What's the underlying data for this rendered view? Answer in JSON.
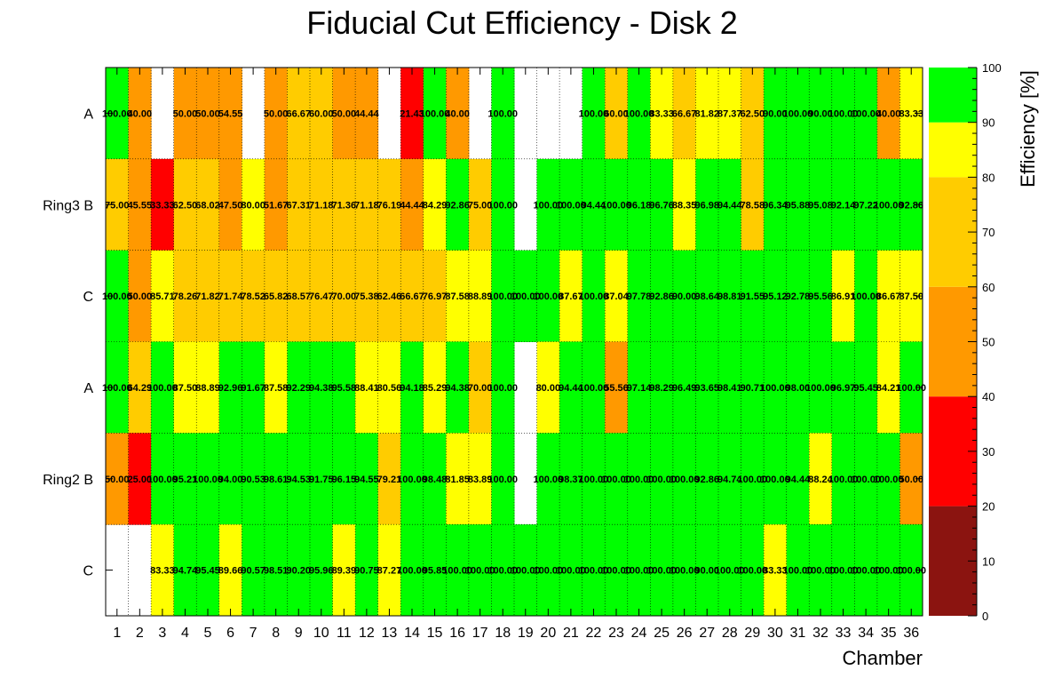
{
  "chart_data": {
    "type": "heatmap",
    "title": "Fiducial Cut Efficiency - Disk 2",
    "xlabel": "Chamber",
    "zlabel": "Efficiency [%]",
    "x": [
      1,
      2,
      3,
      4,
      5,
      6,
      7,
      8,
      9,
      10,
      11,
      12,
      13,
      14,
      15,
      16,
      17,
      18,
      19,
      20,
      21,
      22,
      23,
      24,
      25,
      26,
      27,
      28,
      29,
      30,
      31,
      32,
      33,
      34,
      35,
      36
    ],
    "y_labels": [
      "A",
      "Ring3 B",
      "C",
      "A",
      "Ring2 B",
      "C"
    ],
    "z_range": [
      0,
      100
    ],
    "z_ticks": [
      0,
      10,
      20,
      30,
      40,
      50,
      60,
      70,
      80,
      90,
      100
    ],
    "palette": [
      {
        "from": 0,
        "to": 20,
        "color": "#8b1410"
      },
      {
        "from": 20,
        "to": 40,
        "color": "#ff0000"
      },
      {
        "from": 40,
        "to": 60,
        "color": "#ff9900"
      },
      {
        "from": 60,
        "to": 80,
        "color": "#ffcc00"
      },
      {
        "from": 80,
        "to": 90,
        "color": "#ffff00"
      },
      {
        "from": 90,
        "to": 100.01,
        "color": "#00ff00"
      }
    ],
    "grid": true,
    "rows": [
      [
        100.0,
        40.0,
        null,
        50.0,
        50.0,
        54.55,
        null,
        50.0,
        66.67,
        60.0,
        50.0,
        44.44,
        null,
        21.43,
        100.0,
        40.0,
        null,
        100.0,
        null,
        null,
        null,
        100.0,
        60.0,
        100.0,
        83.33,
        66.67,
        81.82,
        87.37,
        62.5,
        90.0,
        100.0,
        90.0,
        100.0,
        100.0,
        40.0,
        83.33
      ],
      [
        75.0,
        45.55,
        33.33,
        62.5,
        68.02,
        47.5,
        80.0,
        51.67,
        67.31,
        71.18,
        71.36,
        71.18,
        76.19,
        44.44,
        84.29,
        92.86,
        75.0,
        100.0,
        null,
        100.0,
        100.0,
        94.44,
        100.0,
        96.18,
        96.76,
        88.35,
        96.98,
        94.44,
        78.58,
        96.34,
        95.88,
        95.08,
        92.14,
        97.22,
        100.0,
        92.86
      ],
      [
        100.0,
        50.0,
        85.71,
        78.26,
        71.82,
        71.74,
        78.52,
        65.82,
        68.57,
        76.47,
        70.0,
        75.38,
        62.46,
        66.67,
        76.97,
        87.58,
        88.89,
        100.0,
        100.0,
        100.0,
        87.67,
        100.0,
        87.04,
        97.78,
        92.86,
        90.0,
        98.64,
        98.81,
        91.55,
        95.12,
        92.78,
        95.56,
        86.91,
        100.0,
        86.67,
        87.5
      ],
      [
        100.0,
        64.29,
        100.0,
        87.5,
        88.89,
        92.96,
        91.67,
        87.58,
        92.29,
        94.38,
        95.58,
        88.41,
        80.56,
        94.18,
        85.29,
        94.38,
        70.0,
        100.0,
        null,
        80.0,
        94.44,
        100.0,
        55.56,
        97.14,
        98.29,
        96.49,
        93.65,
        98.41,
        90.71,
        100.0,
        98.0,
        100.0,
        96.97,
        95.45,
        84.21,
        100.0
      ],
      [
        50.0,
        25.0,
        100.0,
        95.21,
        100.0,
        94.0,
        90.53,
        98.61,
        94.53,
        91.75,
        96.15,
        94.55,
        79.21,
        100.0,
        98.48,
        81.85,
        83.89,
        100.0,
        null,
        100.0,
        98.37,
        100.0,
        100.0,
        100.0,
        100.0,
        100.0,
        92.86,
        94.74,
        100.0,
        100.0,
        94.44,
        88.24,
        100.0,
        100.0,
        100.0,
        50.0
      ],
      [
        null,
        null,
        83.33,
        94.74,
        95.45,
        89.66,
        90.57,
        98.51,
        90.2,
        95.96,
        89.39,
        90.75,
        87.27,
        100.0,
        95.85,
        100.0,
        100.0,
        100.0,
        100.0,
        100.0,
        100.0,
        100.0,
        100.0,
        100.0,
        100.0,
        100.0,
        90.0,
        100.0,
        100.0,
        83.33,
        100.0,
        100.0,
        100.0,
        100.0,
        100.0,
        100.0
      ]
    ]
  }
}
